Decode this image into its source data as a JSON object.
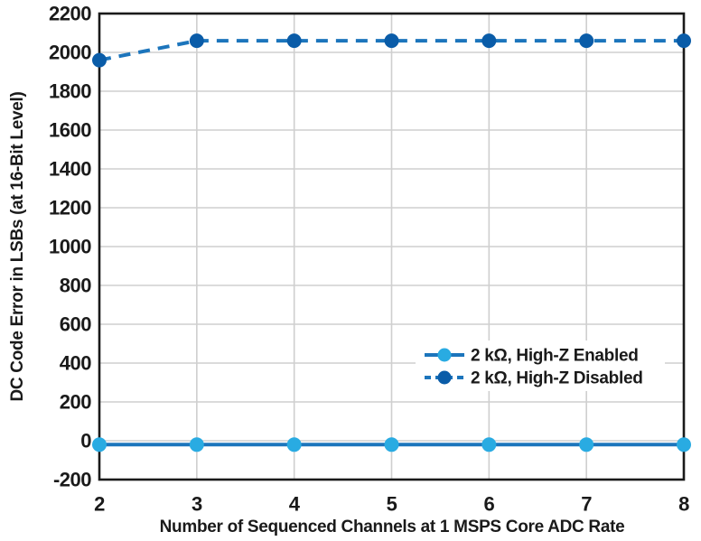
{
  "chart_data": {
    "type": "line",
    "x": [
      2,
      3,
      4,
      5,
      6,
      7,
      8
    ],
    "series": [
      {
        "name": "2 kΩ, High-Z Enabled",
        "values": [
          -20,
          -20,
          -20,
          -20,
          -20,
          -20,
          -20
        ],
        "line_style": "solid",
        "line_color": "#1c75bc",
        "marker_color": "#29abe2",
        "marker": "circle"
      },
      {
        "name": "2 kΩ, High-Z Disabled",
        "values": [
          1960,
          2060,
          2060,
          2060,
          2060,
          2060,
          2060
        ],
        "line_style": "dashed",
        "line_color": "#1c75bc",
        "marker_color": "#0a5ca8",
        "marker": "circle"
      }
    ],
    "title": "",
    "xlabel": "Number of Sequenced Channels at 1 MSPS Core ADC Rate",
    "ylabel": "DC Code Error in LSBs (at 16-Bit Level)",
    "xlim": [
      2,
      8
    ],
    "ylim": [
      -200,
      2200
    ],
    "xtick_labels": [
      "2",
      "3",
      "4",
      "5",
      "6",
      "7",
      "8"
    ],
    "ytick_step": 200,
    "grid": true,
    "legend_position": "inside-right",
    "frame_color": "#1a1a1a",
    "grid_color": "#cfcfcf",
    "text_color": "#1a1a1a",
    "background": "#ffffff"
  }
}
